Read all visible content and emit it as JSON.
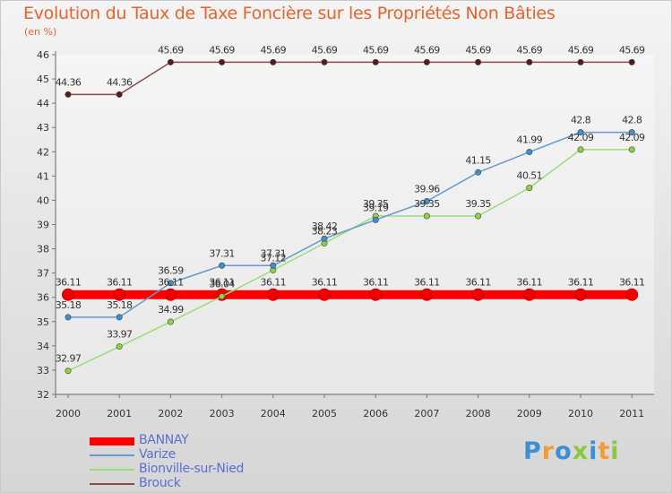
{
  "title": "Evolution du Taux de Taxe Foncière sur les Propriétés Non Bâties",
  "unit_label": "(en %)",
  "logo": {
    "text": "Proxiti",
    "letter_colors": [
      "#3d8fd4",
      "#f39c33",
      "#3d8fd4",
      "#8dc63f",
      "#3d8fd4",
      "#f39c33",
      "#8dc63f"
    ]
  },
  "chart_data": {
    "type": "line",
    "title": "Evolution du Taux de Taxe Foncière sur les Propriétés Non Bâties",
    "ylabel": "(en %)",
    "xlabel": "",
    "x": [
      "2000",
      "2001",
      "2002",
      "2003",
      "2004",
      "2005",
      "2006",
      "2007",
      "2008",
      "2009",
      "2010",
      "2011"
    ],
    "ylim": [
      32,
      46
    ],
    "yticks": [
      "32",
      "33",
      "34",
      "35",
      "36",
      "37",
      "38",
      "39",
      "40",
      "41",
      "42",
      "43",
      "44",
      "45",
      "46"
    ],
    "grid": false,
    "legend_position": "bottom-left",
    "series": [
      {
        "name": "BANNAY",
        "color": "#ff0000",
        "values": [
          36.11,
          36.11,
          36.11,
          36.11,
          36.11,
          36.11,
          36.11,
          36.11,
          36.11,
          36.11,
          36.11,
          36.11
        ],
        "labels": [
          "36.11",
          "36.11",
          "36.11",
          "36.11",
          "36.11",
          "36.11",
          "36.11",
          "36.11",
          "36.11",
          "36.11",
          "36.11",
          "36.11"
        ]
      },
      {
        "name": "Varize",
        "color": "#6699cc",
        "marker_color": "#3d8fd4",
        "values": [
          35.18,
          35.18,
          36.59,
          37.31,
          37.31,
          38.42,
          39.19,
          39.96,
          41.15,
          41.99,
          42.8,
          42.8
        ],
        "labels": [
          "35.18",
          "35.18",
          "36.59",
          "37.31",
          "37.31",
          "38.42",
          "39.19",
          "39.96",
          "41.15",
          "41.99",
          "42.8",
          "42.8"
        ]
      },
      {
        "name": "Bionville-sur-Nied",
        "color": "#99dd77",
        "marker_color": "#8fd43e",
        "values": [
          32.97,
          33.97,
          34.99,
          36.04,
          37.12,
          38.23,
          39.35,
          39.35,
          39.35,
          40.51,
          42.09,
          42.09
        ],
        "labels": [
          "32.97",
          "33.97",
          "34.99",
          "36.04",
          "37.12",
          "38.23",
          "39.35",
          "39.35",
          "39.35",
          "40.51",
          "42.09",
          "42.09"
        ]
      },
      {
        "name": "Brouck",
        "color": "#8b4a4a",
        "marker_color": "#5a1a1a",
        "values": [
          44.36,
          44.36,
          45.69,
          45.69,
          45.69,
          45.69,
          45.69,
          45.69,
          45.69,
          45.69,
          45.69,
          45.69
        ],
        "labels": [
          "44.36",
          "44.36",
          "45.69",
          "45.69",
          "45.69",
          "45.69",
          "45.69",
          "45.69",
          "45.69",
          "45.69",
          "45.69",
          "45.69"
        ]
      }
    ]
  }
}
